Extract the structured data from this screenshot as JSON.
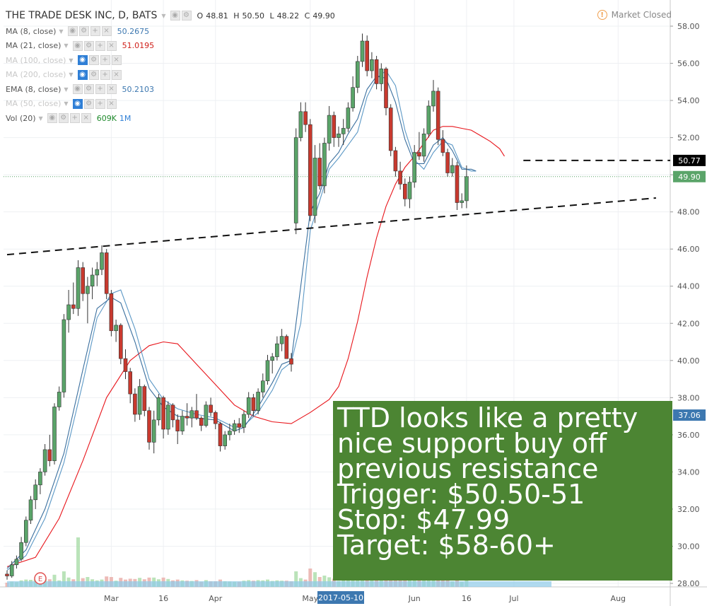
{
  "header": {
    "symbol": "THE TRADE DESK INC, D, BATS",
    "o_label": "O",
    "o": "48.81",
    "h_label": "H",
    "h": "50.50",
    "l_label": "L",
    "l": "48.22",
    "c_label": "C",
    "c": "49.90",
    "market_status": "Market Closed"
  },
  "indicators": [
    {
      "label": "MA (8, close)",
      "value": "50.2675",
      "color": "#3d78b0",
      "hidden": false
    },
    {
      "label": "MA (21, close)",
      "value": "51.0195",
      "color": "#d0211b",
      "hidden": false
    },
    {
      "label": "MA (100, close)",
      "value": "",
      "color": "#c8c8c8",
      "hidden": true
    },
    {
      "label": "MA (200, close)",
      "value": "",
      "color": "#c8c8c8",
      "hidden": true
    },
    {
      "label": "EMA (8, close)",
      "value": "50.2103",
      "color": "#3d78b0",
      "hidden": false
    },
    {
      "label": "MA (50, close)",
      "value": "",
      "color": "#c8c8c8",
      "hidden": true
    },
    {
      "label": "Vol (20)",
      "value": "609K",
      "value2": "1M",
      "color": "#1f8a2c",
      "hidden": false
    }
  ],
  "annotation": {
    "lines": [
      "TTD looks like a pretty",
      "nice support buy off",
      "previous resistance",
      "Trigger: $50.50-51",
      "Stop: $47.99",
      "Target: $58-60+"
    ]
  },
  "colors": {
    "up": "#5aa469",
    "down": "#c8392e",
    "ma21": "#e8151b",
    "ma8": "#3d78b0",
    "note_bg": "#4c8533"
  },
  "chart_data": {
    "type": "candlestick",
    "y_axis": {
      "range": [
        26.8,
        59.0
      ],
      "ticks": [
        "28.00",
        "30.00",
        "32.00",
        "34.00",
        "36.00",
        "38.00",
        "40.00",
        "42.00",
        "44.00",
        "46.00",
        "48.00",
        "50.00",
        "52.00",
        "54.00",
        "56.00",
        "58.00"
      ]
    },
    "x_axis": {
      "labels": [
        {
          "label": "Mar",
          "index": 22
        },
        {
          "label": "16",
          "index": 33
        },
        {
          "label": "Apr",
          "index": 44
        },
        {
          "label": "May",
          "index": 64
        },
        {
          "label": "2017-05-10",
          "index": 70,
          "highlight": true
        },
        {
          "label": "Jun",
          "index": 86
        },
        {
          "label": "16",
          "index": 97
        },
        {
          "label": "Jul",
          "index": 107
        },
        {
          "label": "Aug",
          "index": 129
        }
      ]
    },
    "price_labels": [
      {
        "value": 50.77,
        "text": "50.77",
        "bg": "#000000"
      },
      {
        "value": 49.9,
        "text": "49.90",
        "bg": "#5aa469"
      },
      {
        "value": 37.06,
        "text": "37.06",
        "bg": "#3d78b0"
      }
    ],
    "levels": [
      {
        "type": "trendline",
        "from": {
          "index": 0,
          "value": 45.7
        },
        "to": {
          "index": 137,
          "value": 48.75
        }
      },
      {
        "type": "horizontal",
        "from_index": 109,
        "value": 50.77
      }
    ],
    "last_close_line": 49.9,
    "ohlc": [
      [
        28.5,
        28.7,
        28.2,
        28.4
      ],
      [
        28.4,
        29.2,
        28.3,
        29.0
      ],
      [
        29.0,
        29.5,
        28.8,
        29.3
      ],
      [
        29.3,
        30.5,
        29.2,
        30.2
      ],
      [
        30.2,
        31.6,
        30.0,
        31.4
      ],
      [
        31.4,
        32.7,
        31.2,
        32.5
      ],
      [
        32.5,
        33.6,
        32.0,
        33.3
      ],
      [
        33.3,
        34.2,
        32.8,
        34.0
      ],
      [
        34.0,
        35.5,
        33.8,
        35.2
      ],
      [
        35.2,
        36.0,
        34.3,
        34.6
      ],
      [
        34.6,
        37.7,
        34.4,
        37.5
      ],
      [
        37.5,
        38.6,
        37.3,
        38.3
      ],
      [
        38.3,
        42.5,
        38.0,
        42.2
      ],
      [
        42.2,
        43.8,
        41.5,
        43.0
      ],
      [
        43.0,
        44.2,
        42.5,
        42.8
      ],
      [
        42.8,
        45.4,
        42.4,
        45.0
      ],
      [
        45.0,
        45.3,
        43.2,
        43.6
      ],
      [
        43.6,
        44.5,
        42.0,
        44.0
      ],
      [
        44.0,
        45.0,
        43.3,
        44.6
      ],
      [
        44.6,
        45.3,
        44.0,
        44.9
      ],
      [
        44.9,
        46.2,
        44.6,
        45.8
      ],
      [
        45.8,
        46.0,
        43.3,
        43.6
      ],
      [
        43.6,
        43.8,
        41.3,
        41.6
      ],
      [
        41.6,
        42.2,
        41.0,
        41.9
      ],
      [
        41.9,
        42.0,
        39.8,
        40.1
      ],
      [
        40.1,
        40.6,
        39.0,
        39.4
      ],
      [
        39.4,
        39.6,
        37.7,
        38.2
      ],
      [
        38.2,
        38.5,
        36.7,
        37.1
      ],
      [
        37.1,
        39.0,
        36.8,
        38.6
      ],
      [
        38.6,
        38.7,
        37.0,
        37.3
      ],
      [
        37.3,
        37.5,
        35.2,
        35.6
      ],
      [
        35.6,
        37.3,
        35.0,
        36.8
      ],
      [
        36.8,
        38.2,
        36.5,
        38.0
      ],
      [
        38.0,
        38.1,
        35.8,
        36.3
      ],
      [
        36.3,
        37.8,
        36.0,
        37.6
      ],
      [
        37.6,
        37.7,
        36.4,
        36.8
      ],
      [
        36.8,
        37.1,
        35.5,
        36.2
      ],
      [
        36.2,
        37.3,
        36.0,
        37.0
      ],
      [
        37.0,
        37.7,
        36.5,
        36.9
      ],
      [
        36.9,
        37.5,
        36.4,
        37.3
      ],
      [
        37.3,
        38.2,
        36.8,
        36.9
      ],
      [
        36.9,
        37.0,
        36.2,
        36.5
      ],
      [
        36.5,
        37.8,
        36.4,
        37.6
      ],
      [
        37.6,
        38.0,
        37.0,
        37.2
      ],
      [
        37.2,
        37.3,
        36.3,
        36.6
      ],
      [
        36.6,
        36.7,
        35.1,
        35.4
      ],
      [
        35.4,
        36.2,
        35.2,
        36.0
      ],
      [
        36.0,
        36.6,
        35.7,
        36.2
      ],
      [
        36.2,
        36.8,
        36.0,
        36.6
      ],
      [
        36.6,
        36.9,
        36.1,
        36.4
      ],
      [
        36.4,
        37.3,
        36.1,
        37.1
      ],
      [
        37.1,
        38.3,
        36.9,
        38.0
      ],
      [
        38.0,
        38.2,
        37.0,
        37.3
      ],
      [
        37.3,
        38.5,
        37.1,
        38.3
      ],
      [
        38.3,
        39.3,
        38.0,
        38.9
      ],
      [
        38.9,
        40.3,
        38.7,
        40.0
      ],
      [
        40.0,
        40.4,
        39.3,
        40.2
      ],
      [
        40.2,
        41.3,
        40.0,
        40.9
      ],
      [
        40.9,
        41.7,
        40.5,
        41.3
      ],
      [
        41.3,
        41.4,
        40.2,
        40.1
      ],
      [
        40.1,
        40.4,
        39.4,
        39.8
      ],
      [
        47.4,
        52.5,
        46.8,
        52.0
      ],
      [
        52.0,
        53.9,
        51.8,
        53.4
      ],
      [
        53.4,
        53.9,
        52.3,
        52.7
      ],
      [
        52.7,
        53.0,
        47.5,
        47.8
      ],
      [
        47.8,
        51.6,
        47.4,
        50.9
      ],
      [
        50.9,
        51.7,
        49.2,
        49.4
      ],
      [
        49.4,
        52.0,
        49.0,
        51.7
      ],
      [
        51.7,
        53.7,
        51.3,
        53.2
      ],
      [
        53.2,
        53.4,
        51.5,
        52.0
      ],
      [
        52.0,
        52.6,
        51.5,
        52.2
      ],
      [
        52.2,
        53.0,
        51.6,
        52.5
      ],
      [
        52.5,
        53.9,
        52.3,
        53.6
      ],
      [
        53.6,
        55.3,
        53.4,
        54.7
      ],
      [
        54.7,
        56.4,
        54.4,
        56.1
      ],
      [
        56.1,
        57.6,
        55.8,
        57.2
      ],
      [
        57.2,
        57.5,
        55.3,
        55.6
      ],
      [
        55.6,
        56.6,
        55.2,
        56.2
      ],
      [
        56.2,
        56.4,
        54.6,
        54.9
      ],
      [
        54.9,
        56.0,
        54.5,
        55.7
      ],
      [
        55.7,
        55.8,
        53.2,
        53.6
      ],
      [
        53.6,
        53.8,
        51.0,
        51.3
      ],
      [
        51.3,
        51.5,
        49.9,
        50.2
      ],
      [
        50.2,
        50.7,
        49.2,
        49.5
      ],
      [
        49.5,
        49.8,
        48.3,
        48.7
      ],
      [
        48.7,
        49.9,
        48.2,
        49.6
      ],
      [
        49.6,
        51.6,
        49.3,
        51.2
      ],
      [
        51.2,
        52.3,
        50.8,
        51.0
      ],
      [
        51.0,
        52.5,
        50.7,
        52.2
      ],
      [
        52.2,
        54.0,
        52.0,
        53.7
      ],
      [
        53.7,
        55.1,
        53.4,
        54.5
      ],
      [
        54.5,
        54.7,
        51.6,
        51.9
      ],
      [
        51.9,
        52.4,
        51.0,
        51.2
      ],
      [
        51.2,
        51.4,
        49.9,
        50.1
      ],
      [
        50.1,
        50.9,
        49.9,
        50.5
      ],
      [
        50.5,
        50.7,
        48.1,
        48.5
      ],
      [
        48.5,
        49.0,
        48.2,
        48.6
      ],
      [
        48.6,
        50.5,
        48.2,
        49.9
      ]
    ],
    "ma21": [
      [
        0,
        28.9
      ],
      [
        6,
        29.4
      ],
      [
        11,
        31.5
      ],
      [
        16,
        34.6
      ],
      [
        21,
        38.0
      ],
      [
        26,
        40.0
      ],
      [
        30,
        40.8
      ],
      [
        33,
        41.0
      ],
      [
        36,
        40.9
      ],
      [
        40,
        39.8
      ],
      [
        44,
        38.7
      ],
      [
        48,
        37.6
      ],
      [
        52,
        37.0
      ],
      [
        56,
        36.7
      ],
      [
        60,
        36.6
      ],
      [
        64,
        37.2
      ],
      [
        68,
        37.9
      ],
      [
        70,
        38.6
      ],
      [
        72,
        40.1
      ],
      [
        74,
        42.1
      ],
      [
        76,
        44.5
      ],
      [
        78,
        46.6
      ],
      [
        80,
        48.3
      ],
      [
        82,
        49.5
      ],
      [
        84,
        50.4
      ],
      [
        86,
        51.0
      ],
      [
        88,
        51.7
      ],
      [
        90,
        52.4
      ],
      [
        92,
        52.6
      ],
      [
        94,
        52.6
      ],
      [
        96,
        52.5
      ],
      [
        98,
        52.4
      ],
      [
        100,
        52.1
      ],
      [
        102,
        51.8
      ],
      [
        104,
        51.4
      ],
      [
        105,
        51.0
      ]
    ],
    "ma8": [
      [
        0,
        28.7
      ],
      [
        4,
        29.5
      ],
      [
        8,
        31.5
      ],
      [
        12,
        34.5
      ],
      [
        16,
        38.8
      ],
      [
        19,
        42.3
      ],
      [
        22,
        43.6
      ],
      [
        24,
        43.8
      ],
      [
        27,
        41.7
      ],
      [
        30,
        39.0
      ],
      [
        33,
        37.9
      ],
      [
        36,
        37.4
      ],
      [
        40,
        37.1
      ],
      [
        44,
        36.9
      ],
      [
        48,
        36.4
      ],
      [
        50,
        36.5
      ],
      [
        53,
        37.2
      ],
      [
        56,
        38.4
      ],
      [
        58,
        39.5
      ],
      [
        60,
        39.9
      ],
      [
        62,
        42.0
      ],
      [
        64,
        47.0
      ],
      [
        66,
        48.6
      ],
      [
        68,
        50.3
      ],
      [
        70,
        50.9
      ],
      [
        72,
        51.6
      ],
      [
        74,
        52.3
      ],
      [
        76,
        54.2
      ],
      [
        78,
        55.2
      ],
      [
        80,
        55.6
      ],
      [
        82,
        54.8
      ],
      [
        84,
        52.4
      ],
      [
        86,
        50.8
      ],
      [
        88,
        50.3
      ],
      [
        90,
        51.2
      ],
      [
        92,
        51.8
      ],
      [
        94,
        51.6
      ],
      [
        96,
        50.4
      ],
      [
        98,
        50.2
      ],
      [
        99,
        50.2
      ]
    ],
    "ema8": [
      [
        0,
        28.8
      ],
      [
        4,
        29.8
      ],
      [
        8,
        32.0
      ],
      [
        12,
        35.0
      ],
      [
        16,
        39.5
      ],
      [
        19,
        42.8
      ],
      [
        22,
        43.4
      ],
      [
        24,
        43.1
      ],
      [
        27,
        41.0
      ],
      [
        30,
        38.5
      ],
      [
        33,
        37.5
      ],
      [
        36,
        37.0
      ],
      [
        40,
        36.9
      ],
      [
        44,
        36.8
      ],
      [
        48,
        36.2
      ],
      [
        50,
        36.4
      ],
      [
        53,
        37.5
      ],
      [
        56,
        38.8
      ],
      [
        58,
        39.8
      ],
      [
        60,
        40.0
      ],
      [
        62,
        44.0
      ],
      [
        64,
        48.0
      ],
      [
        66,
        49.0
      ],
      [
        68,
        50.6
      ],
      [
        70,
        51.2
      ],
      [
        72,
        52.2
      ],
      [
        74,
        53.0
      ],
      [
        76,
        54.6
      ],
      [
        78,
        55.3
      ],
      [
        80,
        55.2
      ],
      [
        82,
        53.9
      ],
      [
        84,
        51.9
      ],
      [
        86,
        50.6
      ],
      [
        88,
        50.6
      ],
      [
        90,
        51.6
      ],
      [
        92,
        52.0
      ],
      [
        94,
        51.3
      ],
      [
        96,
        50.3
      ],
      [
        98,
        50.3
      ],
      [
        99,
        50.2
      ]
    ],
    "volume_shown_by_bars": true
  }
}
